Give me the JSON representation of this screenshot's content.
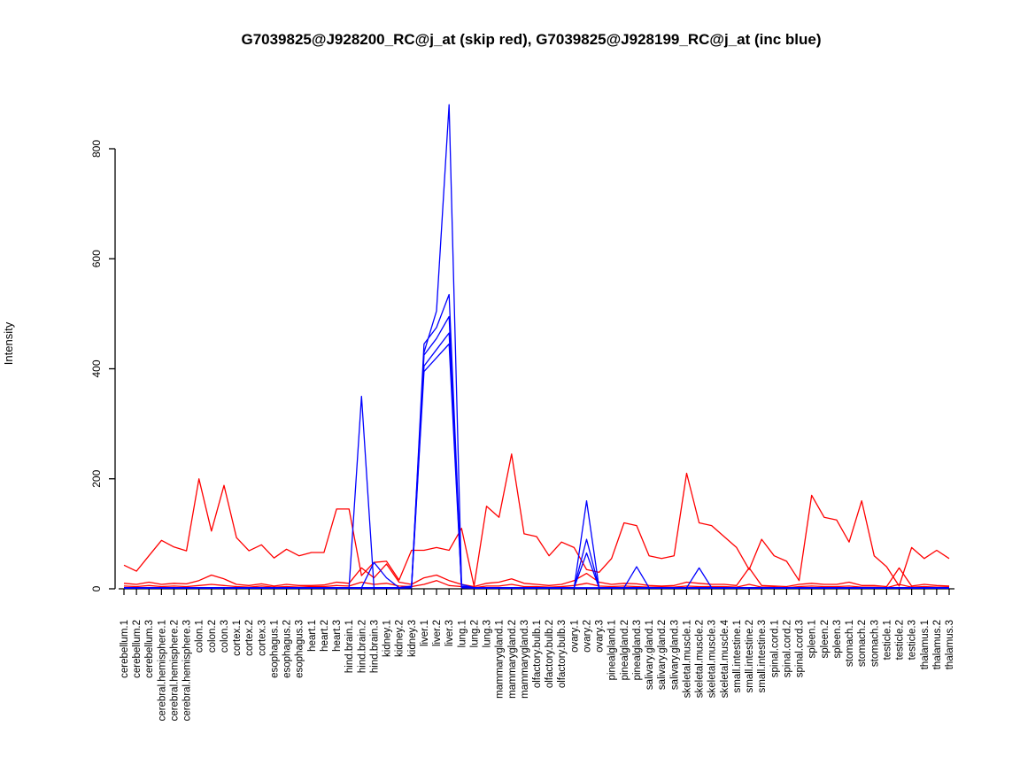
{
  "chart_data": {
    "type": "line",
    "title": "G7039825@J928200_RC@j_at (skip red), G7039825@J928199_RC@j_at (inc blue)",
    "xlabel": "",
    "ylabel": "Intensity",
    "ylim": [
      0,
      880
    ],
    "yticks": [
      0,
      200,
      400,
      600,
      800
    ],
    "grid": false,
    "legend_position": "none",
    "colors": {
      "skip_probeset": "#ff0000",
      "inc_probeset": "#0000ff"
    },
    "categories": [
      "cerebellum.1",
      "cerebellum.2",
      "cerebellum.3",
      "cerebral.hemisphere.1",
      "cerebral.hemisphere.2",
      "cerebral.hemisphere.3",
      "colon.1",
      "colon.2",
      "colon.3",
      "cortex.1",
      "cortex.2",
      "cortex.3",
      "esophagus.1",
      "esophagus.2",
      "esophagus.3",
      "heart.1",
      "heart.2",
      "heart.3",
      "hind.brain.1",
      "hind.brain.2",
      "hind.brain.3",
      "kidney.1",
      "kidney.2",
      "kidney.3",
      "liver.1",
      "liver.2",
      "liver.3",
      "lung.1",
      "lung.2",
      "lung.3",
      "mammarygland.1",
      "mammarygland.2",
      "mammarygland.3",
      "olfactory.bulb.1",
      "olfactory.bulb.2",
      "olfactory.bulb.3",
      "ovary.1",
      "ovary.2",
      "ovary.3",
      "pinealgland.1",
      "pinealgland.2",
      "pinealgland.3",
      "salivary.gland.1",
      "salivary.gland.2",
      "salivary.gland.3",
      "skeletal.muscle.1",
      "skeletal.muscle.2",
      "skeletal.muscle.3",
      "skeletal.muscle.4",
      "small.intestine.1",
      "small.intestine.2",
      "small.intestine.3",
      "spinal.cord.1",
      "spinal.cord.2",
      "spinal.cord.3",
      "spleen.1",
      "spleen.2",
      "spleen.3",
      "stomach.1",
      "stomach.2",
      "stomach.3",
      "testicle.1",
      "testicle.2",
      "testicle.3",
      "thalamus.1",
      "thalamus.2",
      "thalamus.3"
    ],
    "series": [
      {
        "name": "G7039825@J928200_RC@j_at (skip) probe 1",
        "color": "#ff0000",
        "values": [
          43,
          32,
          60,
          88,
          76,
          69,
          200,
          105,
          188,
          93,
          69,
          80,
          56,
          72,
          60,
          66,
          66,
          145,
          145,
          24,
          48,
          50,
          16,
          70,
          70,
          75,
          70,
          110,
          5,
          150,
          130,
          245,
          100,
          95,
          60,
          85,
          75,
          35,
          30,
          55,
          120,
          115,
          60,
          55,
          60,
          210,
          120,
          115,
          95,
          75,
          35,
          90,
          60,
          50,
          15,
          170,
          130,
          125,
          85,
          160,
          60,
          40,
          5,
          75,
          55,
          70,
          55
        ]
      },
      {
        "name": "G7039825@J928200_RC@j_at (skip) probe 2",
        "color": "#ff0000",
        "values": [
          10,
          8,
          12,
          8,
          10,
          9,
          15,
          25,
          18,
          8,
          6,
          9,
          5,
          8,
          6,
          6,
          7,
          12,
          10,
          38,
          20,
          45,
          12,
          8,
          20,
          25,
          15,
          8,
          4,
          10,
          12,
          18,
          10,
          8,
          6,
          8,
          15,
          28,
          12,
          8,
          10,
          9,
          6,
          5,
          6,
          12,
          10,
          8,
          8,
          6,
          38,
          6,
          5,
          4,
          8,
          10,
          8,
          8,
          12,
          6,
          6,
          4,
          38,
          5,
          8,
          6,
          5
        ]
      },
      {
        "name": "G7039825@J928200_RC@j_at (skip) probe 3",
        "color": "#ff0000",
        "values": [
          5,
          4,
          6,
          4,
          5,
          4,
          6,
          8,
          6,
          4,
          3,
          5,
          3,
          4,
          3,
          4,
          4,
          6,
          5,
          12,
          8,
          10,
          5,
          4,
          8,
          15,
          6,
          4,
          2,
          5,
          5,
          8,
          4,
          4,
          3,
          4,
          6,
          10,
          5,
          4,
          5,
          4,
          3,
          3,
          3,
          5,
          4,
          4,
          4,
          3,
          8,
          3,
          3,
          2,
          4,
          5,
          4,
          4,
          5,
          3,
          3,
          2,
          8,
          3,
          4,
          3,
          3
        ]
      },
      {
        "name": "G7039825@J928199_RC@j_at (inc) probe 1",
        "color": "#0000ff",
        "values": [
          2,
          2,
          2,
          2,
          2,
          2,
          2,
          2,
          2,
          2,
          2,
          2,
          2,
          2,
          2,
          2,
          2,
          2,
          2,
          2,
          2,
          2,
          2,
          5,
          430,
          505,
          880,
          8,
          2,
          2,
          2,
          2,
          2,
          2,
          2,
          2,
          2,
          2,
          2,
          2,
          2,
          2,
          2,
          2,
          2,
          2,
          2,
          2,
          2,
          2,
          2,
          2,
          2,
          2,
          2,
          2,
          2,
          2,
          2,
          2,
          2,
          2,
          2,
          2,
          2,
          2,
          2
        ]
      },
      {
        "name": "G7039825@J928199_RC@j_at (inc) probe 2",
        "color": "#0000ff",
        "values": [
          2,
          2,
          2,
          2,
          2,
          2,
          2,
          2,
          2,
          2,
          2,
          2,
          2,
          2,
          2,
          2,
          2,
          2,
          2,
          350,
          2,
          2,
          2,
          4,
          445,
          475,
          535,
          5,
          2,
          2,
          2,
          2,
          2,
          2,
          2,
          2,
          2,
          160,
          2,
          2,
          2,
          2,
          2,
          2,
          2,
          2,
          2,
          2,
          2,
          2,
          2,
          2,
          2,
          2,
          2,
          2,
          2,
          2,
          2,
          2,
          2,
          2,
          2,
          2,
          2,
          2,
          2
        ]
      },
      {
        "name": "G7039825@J928199_RC@j_at (inc) probe 3",
        "color": "#0000ff",
        "values": [
          2,
          2,
          2,
          2,
          2,
          2,
          2,
          2,
          2,
          2,
          2,
          2,
          2,
          2,
          2,
          2,
          2,
          2,
          2,
          2,
          48,
          20,
          2,
          4,
          425,
          455,
          495,
          4,
          2,
          2,
          2,
          2,
          2,
          2,
          2,
          2,
          2,
          90,
          2,
          2,
          2,
          40,
          2,
          2,
          2,
          2,
          2,
          2,
          2,
          2,
          2,
          2,
          2,
          2,
          2,
          2,
          2,
          2,
          2,
          2,
          2,
          2,
          2,
          2,
          2,
          2,
          2
        ]
      },
      {
        "name": "G7039825@J928199_RC@j_at (inc) probe 4",
        "color": "#0000ff",
        "values": [
          2,
          2,
          2,
          2,
          2,
          2,
          2,
          2,
          2,
          2,
          2,
          2,
          2,
          2,
          2,
          2,
          2,
          2,
          2,
          2,
          2,
          2,
          2,
          3,
          405,
          435,
          465,
          3,
          2,
          2,
          2,
          2,
          2,
          2,
          2,
          2,
          2,
          65,
          2,
          2,
          2,
          2,
          2,
          2,
          2,
          2,
          38,
          2,
          2,
          2,
          2,
          2,
          2,
          2,
          2,
          2,
          2,
          2,
          2,
          2,
          2,
          2,
          2,
          2,
          2,
          2,
          2
        ]
      },
      {
        "name": "G7039825@J928199_RC@j_at (inc) probe 5",
        "color": "#0000ff",
        "values": [
          1,
          1,
          1,
          1,
          1,
          1,
          1,
          1,
          1,
          1,
          1,
          1,
          1,
          1,
          1,
          1,
          1,
          1,
          1,
          1,
          1,
          1,
          1,
          2,
          395,
          420,
          445,
          2,
          1,
          1,
          1,
          1,
          1,
          1,
          1,
          1,
          1,
          1,
          1,
          1,
          1,
          1,
          1,
          1,
          1,
          1,
          1,
          1,
          1,
          1,
          1,
          1,
          1,
          1,
          1,
          1,
          1,
          1,
          1,
          1,
          1,
          1,
          1,
          1,
          1,
          1,
          1
        ]
      }
    ]
  }
}
